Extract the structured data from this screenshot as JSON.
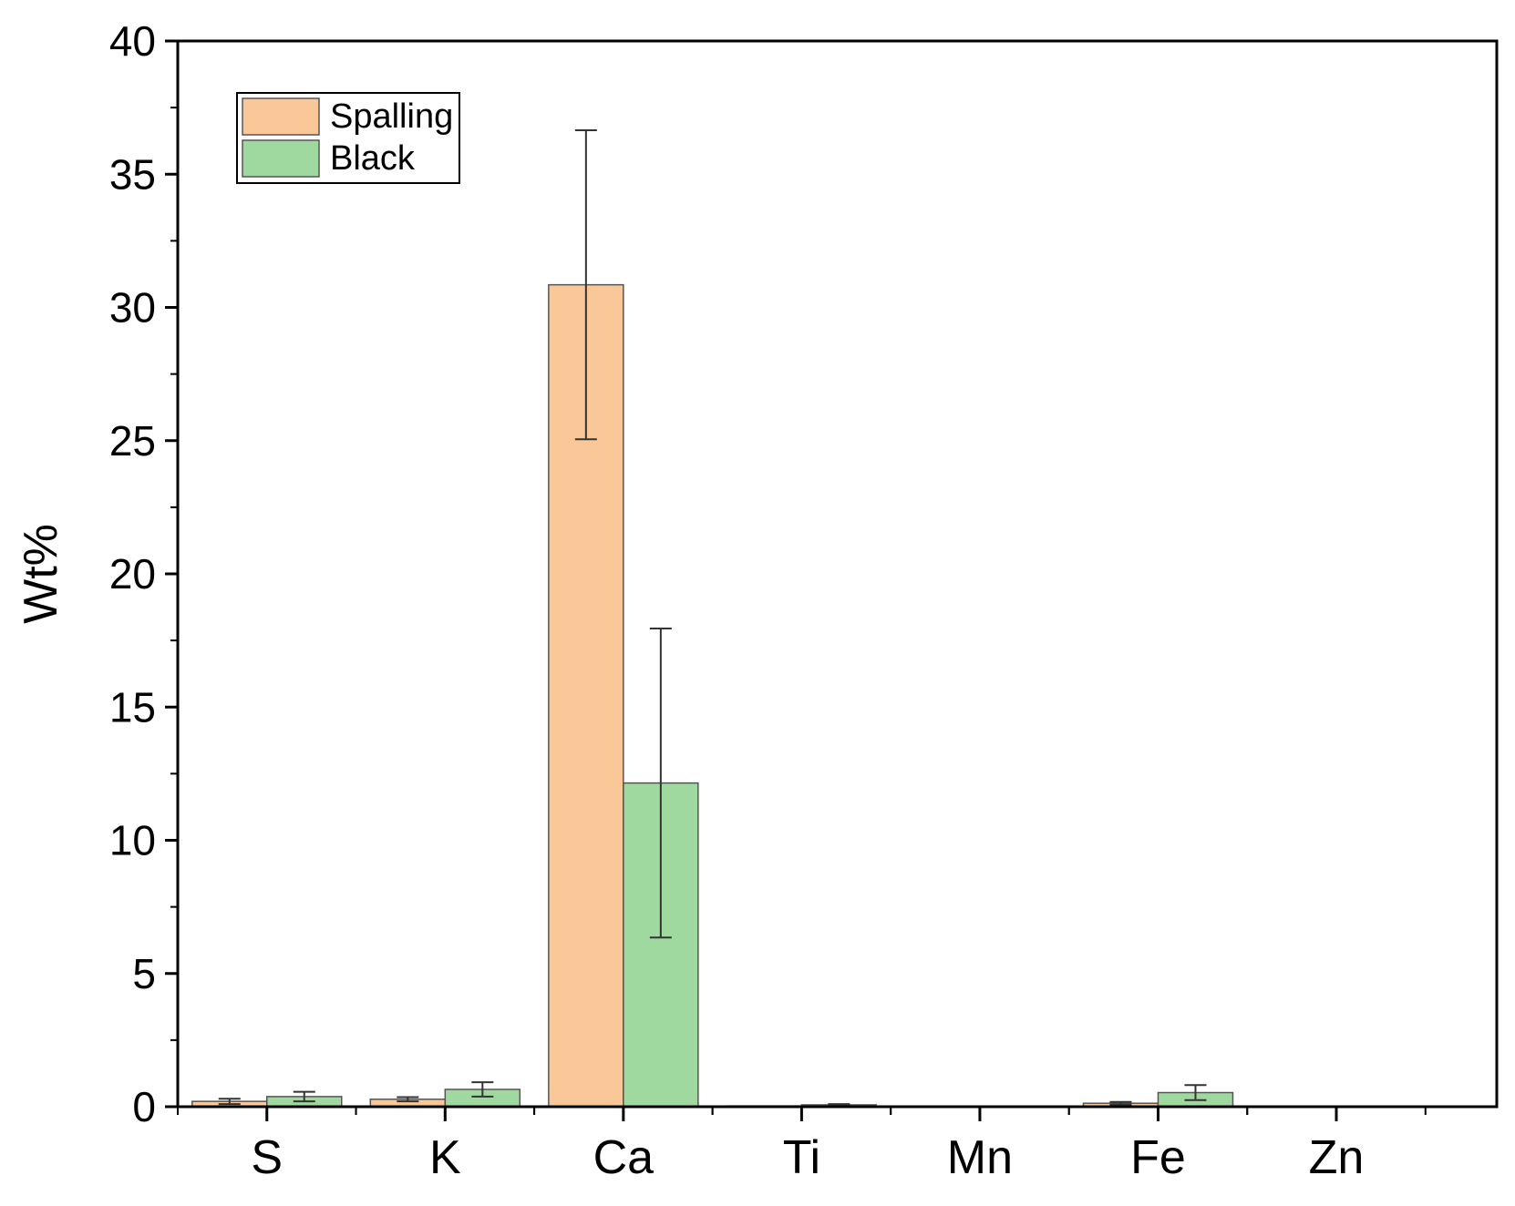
{
  "chart_data": {
    "type": "bar",
    "title": "",
    "xlabel": "",
    "ylabel": "Wt%",
    "ylim": [
      0,
      40
    ],
    "yticks": [
      0,
      5,
      10,
      15,
      20,
      25,
      30,
      35,
      40
    ],
    "grid": false,
    "legend_position": "top-left",
    "categories": [
      "S",
      "K",
      "Ca",
      "Ti",
      "Mn",
      "Fe",
      "Zn"
    ],
    "series": [
      {
        "name": "Spalling",
        "color": "#fac898",
        "values": [
          0.2,
          0.28,
          30.85,
          0.03,
          0.0,
          0.13,
          0.0
        ],
        "errors": [
          0.1,
          0.08,
          5.8,
          0.0,
          0.0,
          0.05,
          0.0
        ]
      },
      {
        "name": "Black",
        "color": "#a0d9a0",
        "values": [
          0.38,
          0.65,
          12.15,
          0.07,
          0.02,
          0.53,
          0.02
        ],
        "errors": [
          0.18,
          0.27,
          5.8,
          0.03,
          0.0,
          0.28,
          0.0
        ]
      }
    ]
  }
}
